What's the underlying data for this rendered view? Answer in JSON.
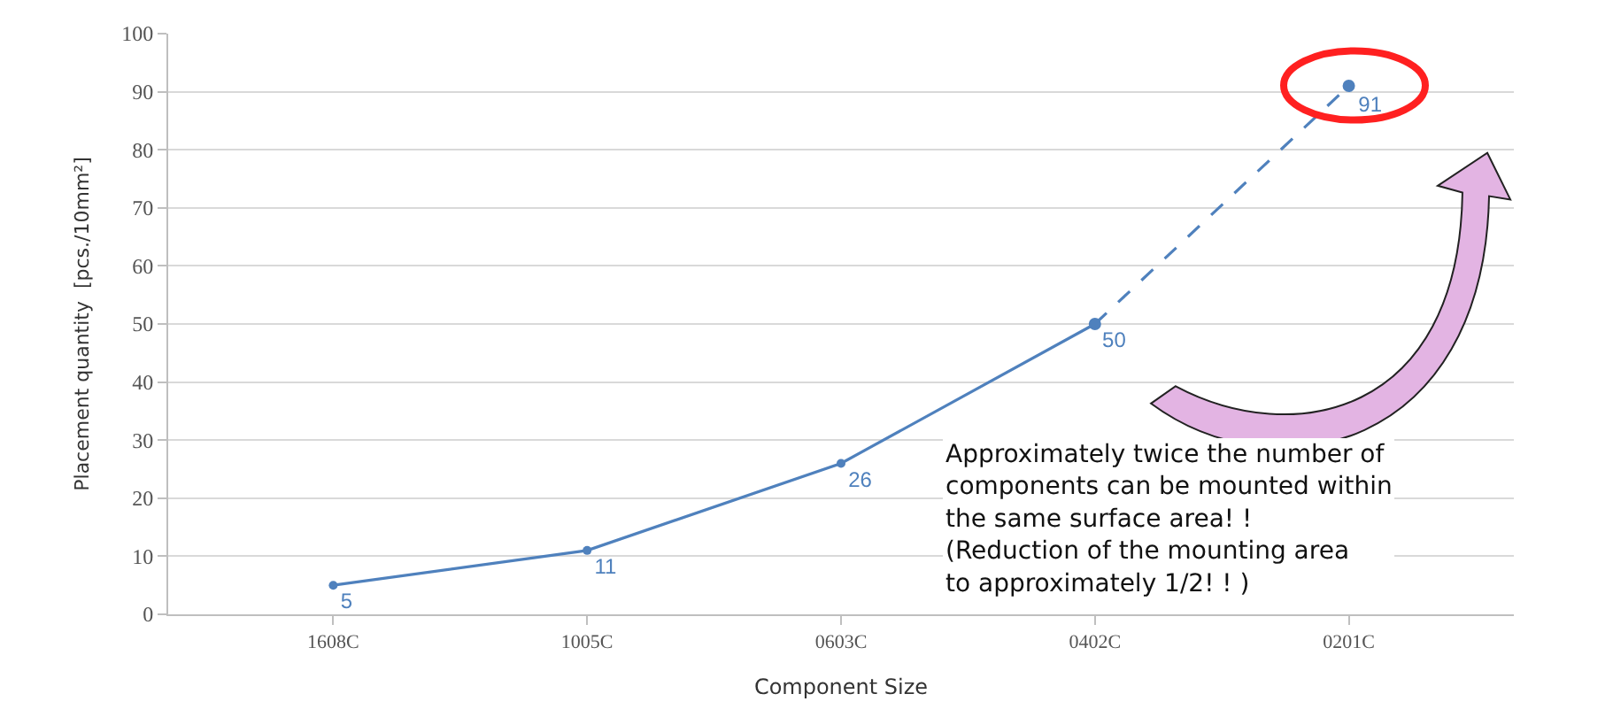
{
  "chart_data": {
    "type": "line",
    "xlabel": "Component Size",
    "ylabel": "Placement quantity  [pcs./10mm²]",
    "categories": [
      "1608C",
      "1005C",
      "0603C",
      "0402C",
      "0201C"
    ],
    "series": [
      {
        "color": "#4f81bd",
        "values": [
          5,
          11,
          26,
          50,
          null
        ],
        "line_style": "solid",
        "value_labels": [
          "5",
          "11",
          "26",
          "50",
          null
        ]
      },
      {
        "color": "#4f81bd",
        "values": [
          null,
          null,
          null,
          50,
          91
        ],
        "line_style": "dashed",
        "value_labels": [
          null,
          null,
          null,
          null,
          "91"
        ]
      }
    ],
    "ylim": [
      0,
      100
    ],
    "yticks": [
      0,
      10,
      20,
      30,
      40,
      50,
      60,
      70,
      80,
      90,
      100
    ],
    "grid": "y",
    "marker": "circle",
    "annotations": [
      "Approximately twice the number of\ncomponents can be mounted within\nthe same surface area! !\n(Reduction of the mounting area\nto approximately 1/2! ! )"
    ]
  }
}
